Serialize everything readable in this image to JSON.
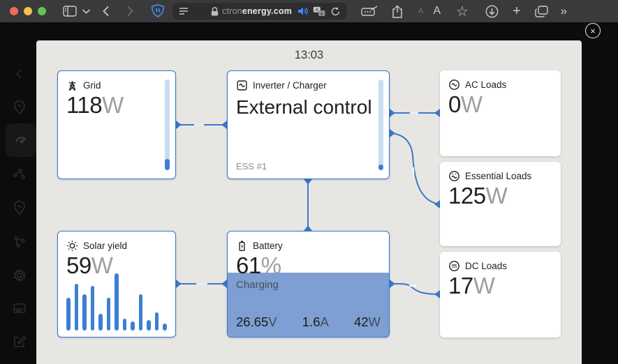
{
  "browser": {
    "url_dim": "ctron",
    "url_bright": "energy.com",
    "font_small_label": "A",
    "font_big_label": "A",
    "star": "☆",
    "plus": "+",
    "more": "»"
  },
  "overlay": {
    "time": "13:03",
    "close_label": "×"
  },
  "cards": {
    "grid": {
      "label": "Grid",
      "value": "118",
      "unit": "W",
      "bar_fill_pct": 12
    },
    "inverter": {
      "label": "Inverter / Charger",
      "state": "External control",
      "sub": "ESS #1",
      "bar_fill_pct": 6
    },
    "ac_loads": {
      "label": "AC Loads",
      "value": "0",
      "unit": "W"
    },
    "essential_loads": {
      "label": "Essential Loads",
      "value": "125",
      "unit": "W"
    },
    "dc_loads": {
      "label": "DC Loads",
      "value": "17",
      "unit": "W"
    },
    "solar": {
      "label": "Solar yield",
      "value": "59",
      "unit": "W",
      "history_pct": [
        55,
        78,
        60,
        75,
        28,
        55,
        95,
        20,
        15,
        60,
        18,
        30,
        12
      ]
    },
    "battery": {
      "label": "Battery",
      "value": "61",
      "unit": "%",
      "status": "Charging",
      "soc_pct": 61,
      "metrics": [
        {
          "value": "26.65",
          "unit": "V"
        },
        {
          "value": "1.6",
          "unit": "A"
        },
        {
          "value": "42",
          "unit": "W"
        }
      ]
    }
  },
  "colors": {
    "accent_blue": "#3d7fd0",
    "flow_line": "#3c78c8",
    "battery_fill": "#7e9fd3",
    "card_border": "#2f7ad0",
    "shield_blue": "#3f8ef6"
  }
}
